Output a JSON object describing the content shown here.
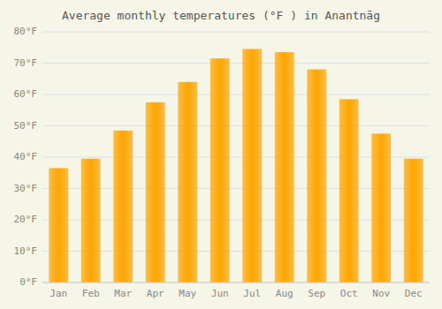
{
  "chart_data": {
    "type": "bar",
    "title": "Average monthly temperatures (°F ) in Anantnāg",
    "categories": [
      "Jan",
      "Feb",
      "Mar",
      "Apr",
      "May",
      "Jun",
      "Jul",
      "Aug",
      "Sep",
      "Oct",
      "Nov",
      "Dec"
    ],
    "values": [
      36.5,
      39.5,
      48.5,
      57.5,
      64.0,
      71.5,
      74.5,
      73.5,
      68.0,
      58.5,
      47.5,
      39.5
    ],
    "color": "#FFA500",
    "ylim": [
      0,
      80
    ],
    "yticks": [
      {
        "value": 0,
        "label": "0°F"
      },
      {
        "value": 10,
        "label": "10°F"
      },
      {
        "value": 20,
        "label": "20°F"
      },
      {
        "value": 30,
        "label": "30°F"
      },
      {
        "value": 40,
        "label": "40°F"
      },
      {
        "value": 50,
        "label": "50°F"
      },
      {
        "value": 60,
        "label": "60°F"
      },
      {
        "value": 70,
        "label": "70°F"
      },
      {
        "value": 80,
        "label": "80°F"
      }
    ],
    "grid": true
  }
}
